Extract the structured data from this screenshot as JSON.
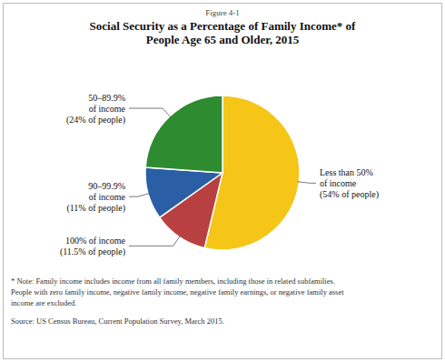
{
  "chart_data": {
    "type": "pie",
    "subtitle": "Figure 4-1",
    "title": "Social Security as a Percentage of Family Income* of\nPeople Age 65 and Older, 2015",
    "categories": [
      "Less than 50%\nof income\n(54% of people)",
      "100% of income\n(11.5% of people)",
      "90–99.9%\nof income\n(11% of people)",
      "50–89.9%\nof income\n(24% of people)"
    ],
    "values": [
      54,
      11.5,
      11,
      24
    ],
    "colors": [
      "#F5C518",
      "#B94040",
      "#2B5FA5",
      "#2E8B30"
    ],
    "annotations": [
      "* Note: Family income includes income from all family members, including those in related subfamilies.",
      "People with zero family income, negative family income, negative family earnings, or negative family asset",
      "income are excluded.",
      "Source: US Census Bureau, Current Population Survey, March 2015."
    ]
  }
}
